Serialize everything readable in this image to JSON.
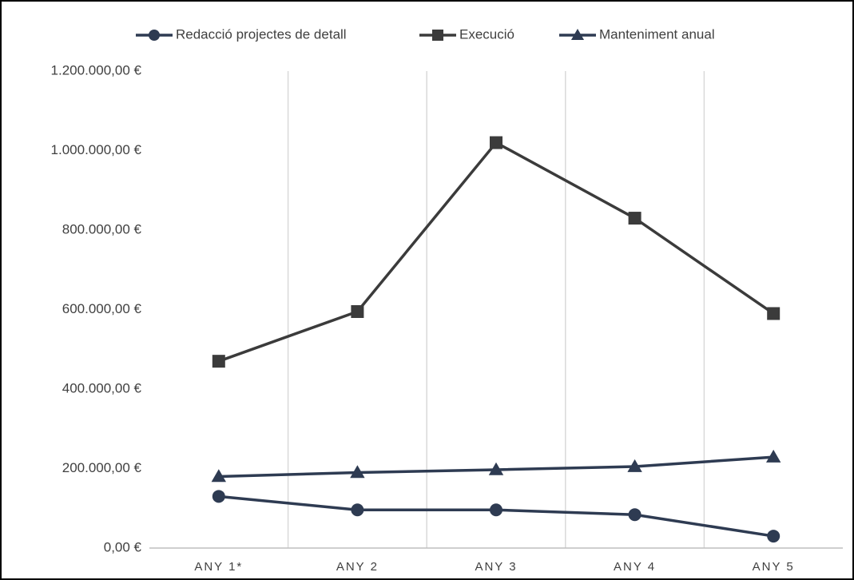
{
  "chart_data": {
    "type": "line",
    "categories": [
      "ANY 1*",
      "ANY 2",
      "ANY 3",
      "ANY 4",
      "ANY 5"
    ],
    "series": [
      {
        "name": "Redacció projectes de detall",
        "color": "#2e3b52",
        "marker": "circle",
        "values": [
          130000,
          96000,
          96000,
          84000,
          30000
        ]
      },
      {
        "name": "Execució",
        "color": "#3b3b3b",
        "marker": "square",
        "values": [
          470000,
          595000,
          1020000,
          830000,
          590000
        ]
      },
      {
        "name": "Manteniment anual",
        "color": "#2e3b52",
        "marker": "triangle",
        "values": [
          180000,
          190000,
          197000,
          205000,
          229000
        ]
      }
    ],
    "ylim": [
      0,
      1200000
    ],
    "yticks": [
      {
        "value": 0,
        "label": "0,00 €"
      },
      {
        "value": 200000,
        "label": "200.000,00 €"
      },
      {
        "value": 400000,
        "label": "400.000,00 €"
      },
      {
        "value": 600000,
        "label": "600.000,00 €"
      },
      {
        "value": 800000,
        "label": "800.000,00 €"
      },
      {
        "value": 1000000,
        "label": "1.000.000,00 €"
      },
      {
        "value": 1200000,
        "label": "1.200.000,00 €"
      }
    ],
    "grid": "x",
    "legend": "top"
  }
}
